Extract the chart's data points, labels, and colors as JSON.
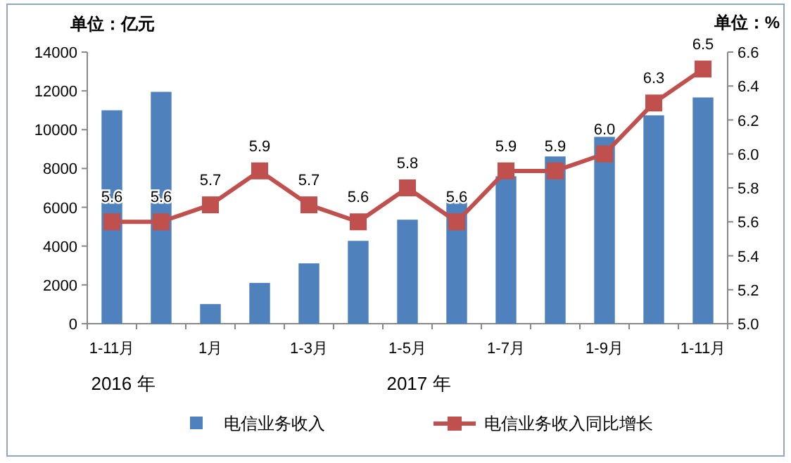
{
  "chart_data": {
    "type": "bar",
    "ylabel": "单位：亿元",
    "y2label": "单位：%",
    "categories": [
      "1-11月",
      null,
      "1月",
      null,
      "1-3月",
      null,
      "1-5月",
      null,
      "1-7月",
      null,
      "1-9月",
      null,
      "1-11月"
    ],
    "series": [
      {
        "name": "电信业务收入",
        "color": "#4f81bd",
        "values": [
          11000,
          11950,
          1010,
          2100,
          3110,
          4270,
          5360,
          6440,
          7600,
          8620,
          9630,
          10740,
          11660
        ]
      },
      {
        "name": "电信业务收入同比增长",
        "type": "line",
        "axis": "y2",
        "color": "#c0504d",
        "marker": "square",
        "values": [
          5.6,
          5.6,
          5.7,
          5.9,
          5.7,
          5.6,
          5.8,
          5.6,
          5.9,
          5.9,
          6.0,
          6.3,
          6.5
        ],
        "value_labels": [
          "5.6",
          "5.6",
          "5.7",
          "5.9",
          "5.7",
          "5.6",
          "5.8",
          "5.6",
          "5.9",
          "5.9",
          "6.0",
          "6.3",
          "6.5"
        ]
      }
    ],
    "ylim": [
      0,
      14000
    ],
    "yticks": [
      0,
      2000,
      4000,
      6000,
      8000,
      10000,
      12000,
      14000
    ],
    "y2lim": [
      5.0,
      6.6
    ],
    "y2ticks": [
      {
        "value": 5.0,
        "label": "5.0"
      },
      5.2,
      5.4,
      5.6,
      5.8,
      {
        "value": 6.0,
        "label": "6.0"
      },
      6.2,
      6.4,
      6.6
    ],
    "annotations": [
      "2016 年",
      "2017 年"
    ],
    "legend": "bottom",
    "grid": false
  }
}
